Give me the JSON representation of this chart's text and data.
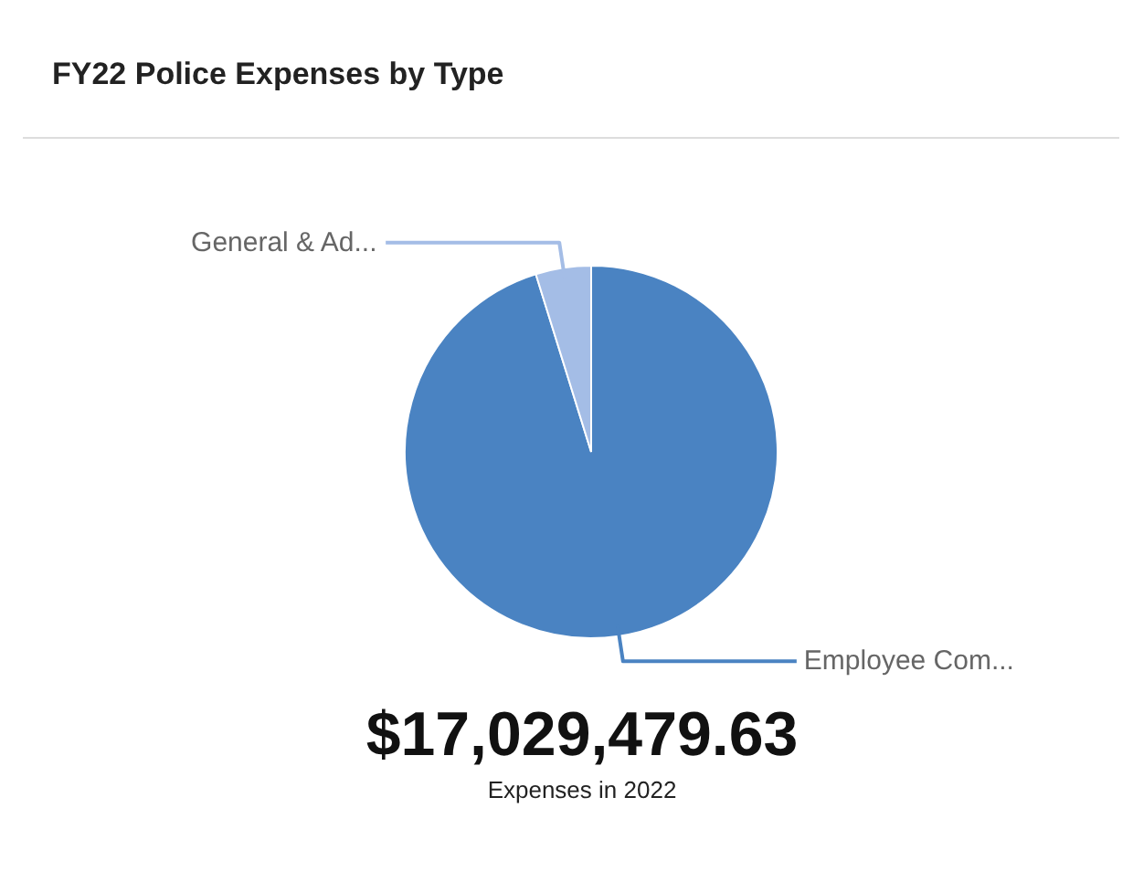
{
  "chart_data": {
    "type": "pie",
    "title": "FY22 Police Expenses by Type",
    "categories": [
      "Employee Com...",
      "General & Ad..."
    ],
    "values": [
      95.2,
      4.8
    ],
    "colors": [
      "#4a83c2",
      "#a4bde6"
    ],
    "annotations": [
      "$17,029,479.63",
      "Expenses in 2022"
    ]
  }
}
